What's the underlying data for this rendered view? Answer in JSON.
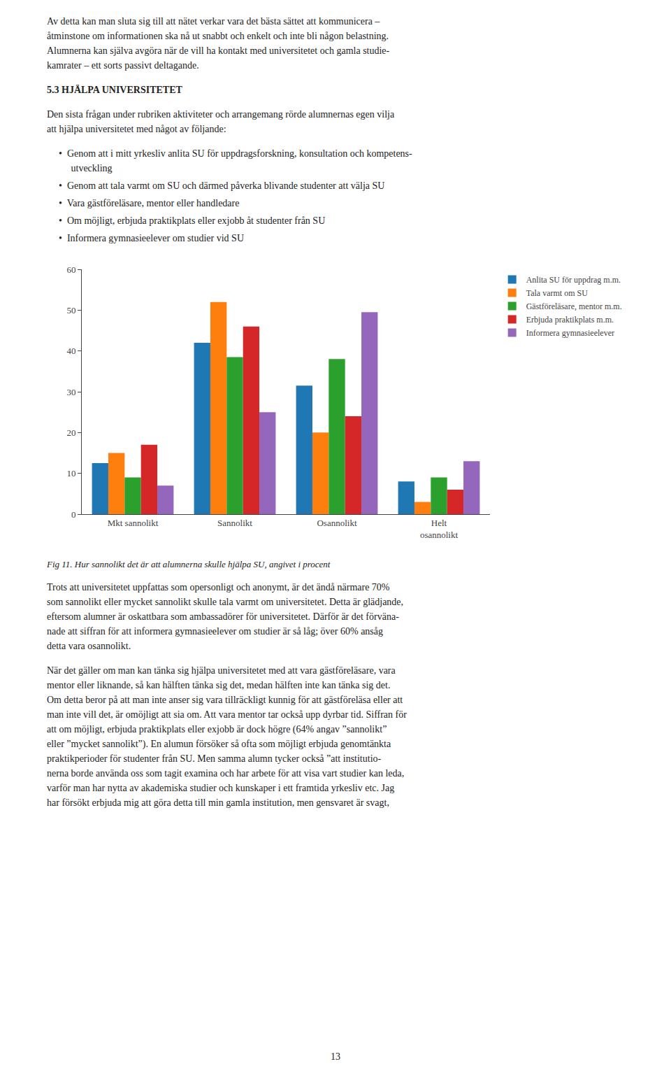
{
  "chart_data": {
    "type": "bar",
    "categories": [
      "Mkt sannolikt",
      "Sannolikt",
      "Osannolikt",
      "Helt\nosannolikt"
    ],
    "series": [
      {
        "name": "Anlita SU för uppdrag m.m.",
        "values": [
          12.5,
          42,
          31.5,
          8
        ]
      },
      {
        "name": "Tala varmt om SU",
        "values": [
          15,
          52,
          20,
          3
        ]
      },
      {
        "name": "Gästföreläsare, mentor m.m.",
        "values": [
          9,
          38.5,
          38,
          9
        ]
      },
      {
        "name": "Erbjuda praktikplats m.m.",
        "values": [
          17,
          46,
          24,
          6
        ]
      },
      {
        "name": "Informera gymnasieelever",
        "values": [
          7,
          25,
          49.5,
          13
        ]
      }
    ],
    "ylim": [
      0,
      60
    ],
    "yticks": [
      0,
      10,
      20,
      30,
      40,
      50,
      60
    ],
    "grid": false,
    "legend": "upper right",
    "annotations": [
      "Av detta kan man sluta sig till att nätet verkar vara det bästa sättet att kommunicera –\nåtminstone om informationen ska nå ut snabbt och enkelt och inte bli någon belastning.\nAlumnerna kan själva avgöra när de vill ha kontakt med universitetet och gamla studie-\nkamrater – ett sorts passivt deltagande.",
      "5.3 HЈÄLPA UNIVERSITETET",
      "Den sista frågan under rubriken aktiviteter och arrangemang rörde alumnernas egen vilja\natt hjälpa universitetet med något av följande:",
      "•  Genom att i mitt yrkesliv anlita SU för uppdragsforskning, konsultation och kompetens-\n     utveckling",
      "•  Genom att tala varmt om SU och därmed påverka blivande studenter att välja SU",
      "•  Vara gästföreläsare, mentor eller handledare",
      "•  Om möjligt, erbjuda praktikplats eller exjobb åt studenter från SU",
      "•  Informera gymnasieelever om studier vid SU",
      "Fig 11. Hur sannolikt det är att alumnerna skulle hjälpa SU, angivet i procent",
      "Trots att universitetet uppfattas som opersonligt och anonymt, är det ändå närmare 70%\nsom sannolikt eller mycket sannolikt skulle tala varmt om universitetet. Detta är glädjande,\neftersom alumner är oskattbara som ambassadörer för universitetet. Därför är det förväna-\nnade att siffran för att informera gymnasieelever om studier är så låg; över 60% ansåg\ndetta vara osannolikt.",
      "När det gäller om man kan tänka sig hjälpa universitetet med att vara gästföreläsare, vara\nmentor eller liknande, så kan hälften tänka sig det, medan hälften inte kan tänka sig det.\nOm detta beror på att man inte anser sig vara tillräckligt kunnig för att gästföreläsa eller att\nman inte vill det, är omöjligt att sia om. Att vara mentor tar också upp dyrbar tid. Siffran för\natt om möjligt, erbjuda praktikplats eller exjobb är dock högre (64% angav ”sannolikt”\neller ”mycket sannolikt”). En alumun försöker så ofta som möjligt erbjuda genomtänkta\npraktikperioder för studenter från SU. Men samma alumn tycker också ”att institutio-\nnerna borde använda oss som tagit examina och har arbete för att visa vart studier kan leda,\nvarför man har nytta av akademiska studier och kunskaper i ett framtida yrkesliv etc. Jag\nhar försökt erbjuda mig att göra detta till min gamla institution, men gensvaret är svagt,",
      "13"
    ]
  }
}
